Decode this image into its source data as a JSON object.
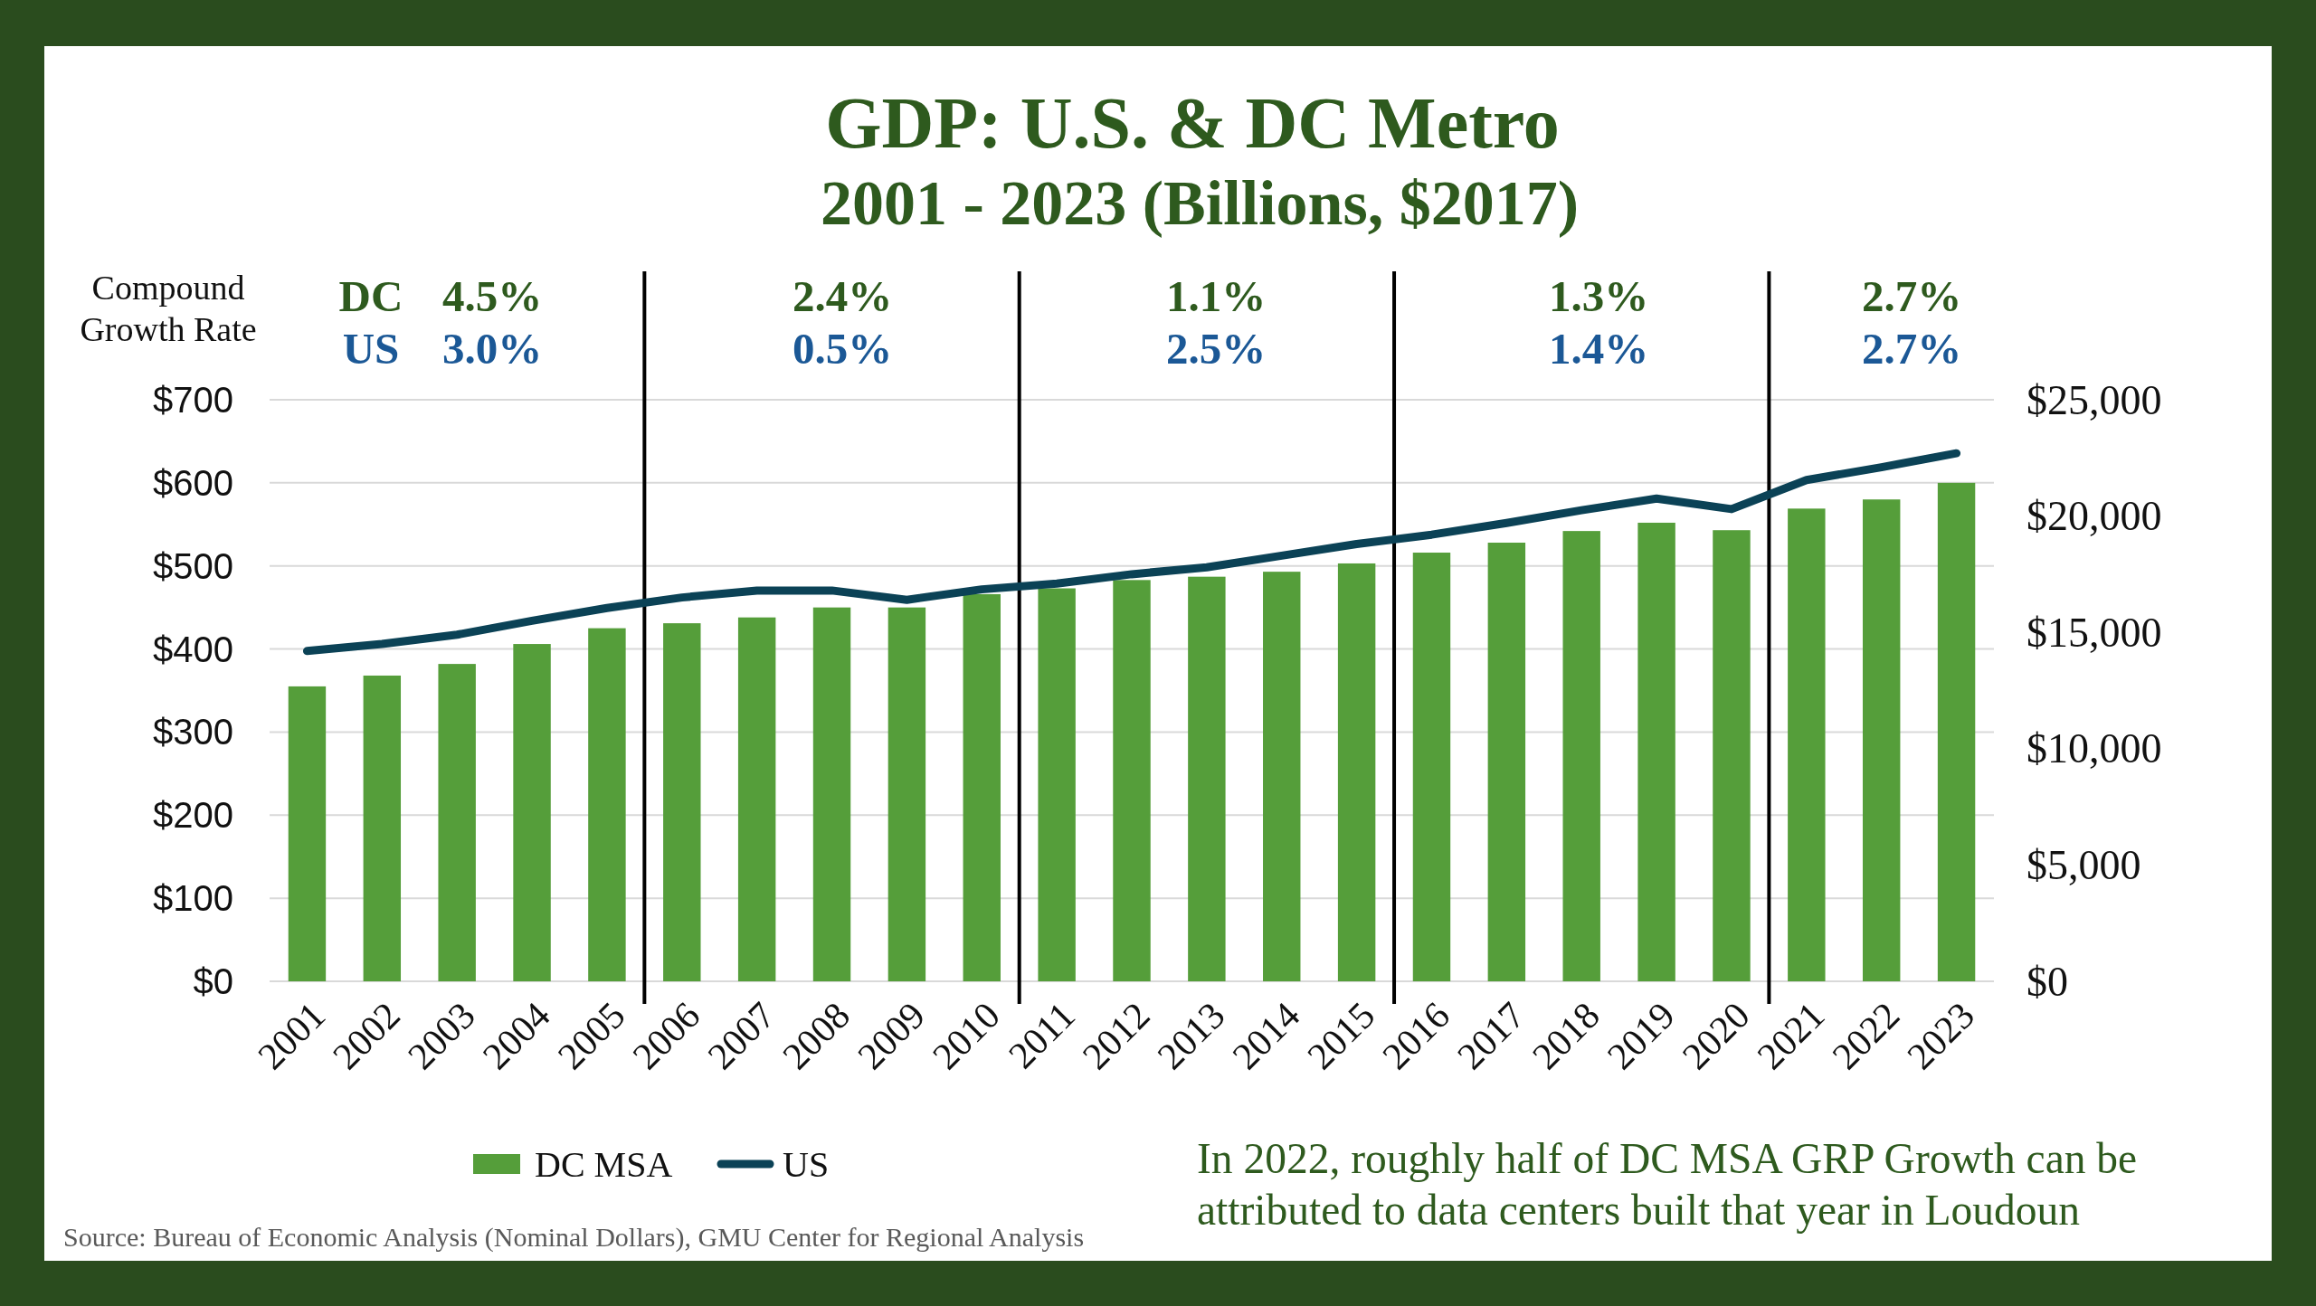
{
  "chart_data": {
    "type": "bar",
    "title": "GDP: U.S. & DC Metro",
    "subtitle": "2001 - 2023 (Billions, $2017)",
    "x": [
      2001,
      2002,
      2003,
      2004,
      2005,
      2006,
      2007,
      2008,
      2009,
      2010,
      2011,
      2012,
      2013,
      2014,
      2015,
      2016,
      2017,
      2018,
      2019,
      2020,
      2021,
      2022,
      2023
    ],
    "xlim": [
      2000.5,
      2023.5
    ],
    "xticks": [
      2001,
      2002,
      2003,
      2004,
      2005,
      2006,
      2007,
      2008,
      2009,
      2010,
      2011,
      2012,
      2013,
      2014,
      2015,
      2016,
      2017,
      2018,
      2019,
      2020,
      2021,
      2022,
      2023
    ],
    "ylim": [
      0,
      700
    ],
    "yticks": [
      {
        "value": 0,
        "label": "$0"
      },
      {
        "value": 100,
        "label": "$100"
      },
      {
        "value": 200,
        "label": "$200"
      },
      {
        "value": 300,
        "label": "$300"
      },
      {
        "value": 400,
        "label": "$400"
      },
      {
        "value": 500,
        "label": "$500"
      },
      {
        "value": 600,
        "label": "$600"
      },
      {
        "value": 700,
        "label": "$700"
      }
    ],
    "y2lim": [
      0,
      25000
    ],
    "y2ticks": [
      {
        "value": 0,
        "label": "$0"
      },
      {
        "value": 5000,
        "label": "$5,000"
      },
      {
        "value": 10000,
        "label": "$10,000"
      },
      {
        "value": 15000,
        "label": "$15,000"
      },
      {
        "value": 20000,
        "label": "$20,000"
      },
      {
        "value": 25000,
        "label": "$25,000"
      }
    ],
    "series": [
      {
        "name": "DC MSA",
        "color": "#559e3a",
        "values": [
          355,
          368,
          382,
          406,
          425,
          431,
          438,
          450,
          450,
          466,
          473,
          483,
          487,
          493,
          503,
          516,
          528,
          542,
          552,
          543,
          569,
          580,
          600
        ]
      },
      {
        "name": "US",
        "type": "line",
        "axis": "y2",
        "color": "#0b4256",
        "values": [
          14200,
          14500,
          14900,
          15500,
          16050,
          16500,
          16800,
          16800,
          16400,
          16850,
          17100,
          17500,
          17800,
          18300,
          18800,
          19200,
          19700,
          20250,
          20750,
          20300,
          21550,
          22100,
          22700
        ]
      }
    ],
    "ref_lines": [
      {
        "axis": "x",
        "value": 2005.5,
        "color": "#000000"
      },
      {
        "axis": "x",
        "value": 2010.5,
        "color": "#000000"
      },
      {
        "axis": "x",
        "value": 2015.5,
        "color": "#000000"
      },
      {
        "axis": "x",
        "value": 2020.5,
        "color": "#000000"
      }
    ],
    "grid": "y",
    "legend": "bottom",
    "annotations": [
      "Compound Growth Rate",
      "DC",
      "US",
      "4.5%",
      "3.0%",
      "2.4%",
      "0.5%",
      "1.1%",
      "2.5%",
      "1.3%",
      "1.4%",
      "2.7%",
      "2.7%",
      "Source: Bureau of Economic Analysis (Nominal Dollars), GMU Center for Regional Analysis",
      "In 2022, roughly half of DC MSA GRP Growth can be attributed to data centers built that year in Loudoun"
    ]
  }
}
